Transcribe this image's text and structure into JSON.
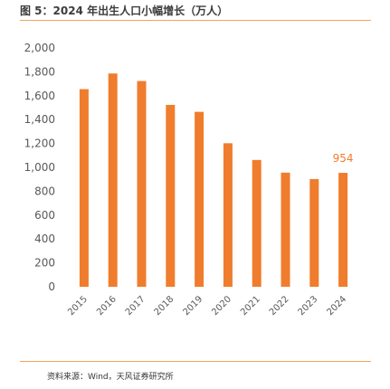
{
  "figure": {
    "title": "图 5：2024 年出生人口小幅增长（万人）",
    "source": "资料来源：Wind，天风证券研究所"
  },
  "colors": {
    "bar": "#ef7d2d",
    "accent_rule": "#f0a35e",
    "axis_text": "#595959"
  },
  "chart_data": {
    "type": "bar",
    "categories": [
      "2015",
      "2016",
      "2017",
      "2018",
      "2019",
      "2020",
      "2021",
      "2022",
      "2023",
      "2024"
    ],
    "series": [
      {
        "values": [
          1655,
          1786,
          1723,
          1523,
          1465,
          1202,
          1062,
          956,
          902,
          954
        ]
      }
    ],
    "data_labels": [
      {
        "category": "2024",
        "text": "954"
      }
    ],
    "title": "",
    "xlabel": "",
    "ylabel": "",
    "ylim": [
      0,
      2000
    ],
    "yticks": [
      0,
      200,
      400,
      600,
      800,
      1000,
      1200,
      1400,
      1600,
      1800,
      2000
    ],
    "ytick_labels": [
      "0",
      "200",
      "400",
      "600",
      "800",
      "1,000",
      "1,200",
      "1,400",
      "1,600",
      "1,800",
      "2,000"
    ],
    "grid": false,
    "legend": "none"
  }
}
